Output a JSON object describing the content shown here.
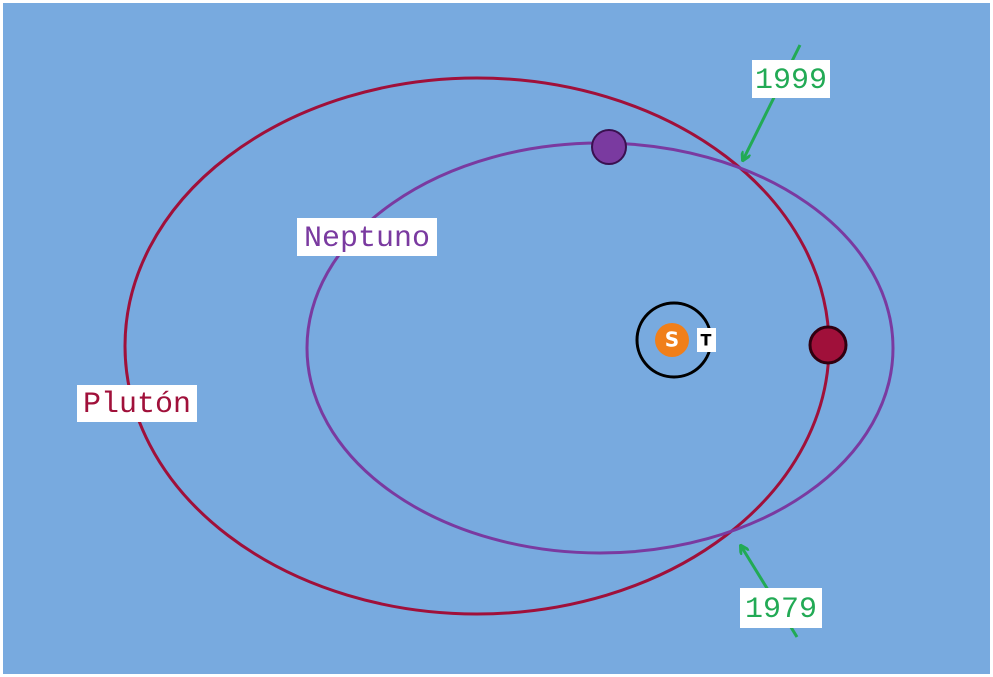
{
  "labels": {
    "year_top": "1999",
    "year_bottom": "1979",
    "neptune": "Neptuno",
    "pluto": "Plutón",
    "sun": "S",
    "earth": "T"
  }
}
